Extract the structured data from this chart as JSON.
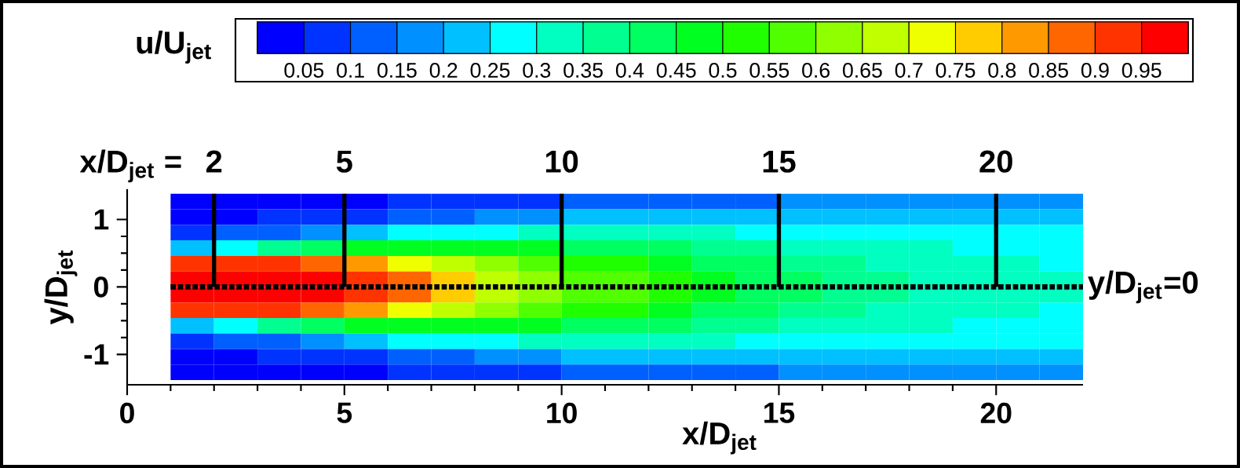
{
  "chart_data": {
    "type": "heatmap",
    "xlabel": "x/D$_{jet}$",
    "ylabel": "y/D$_{jet}$",
    "clabel": "u/U$_{jet}$",
    "xlim": [
      0,
      22
    ],
    "ylim": [
      -1.45,
      1.45
    ],
    "xticks": [
      0,
      5,
      10,
      15,
      20
    ],
    "yticks": [
      -1,
      0,
      1
    ],
    "x": [
      1.5,
      2.5,
      3.5,
      4.5,
      5.5,
      6.5,
      7.5,
      8.5,
      9.5,
      10.5,
      11.5,
      12.5,
      13.5,
      14.5,
      15.5,
      16.5,
      17.5,
      18.5,
      19.5,
      20.5,
      21.5
    ],
    "y": [
      1.265,
      1.035,
      0.805,
      0.575,
      0.345,
      0.115,
      -0.115,
      -0.345,
      -0.575,
      -0.805,
      -1.035,
      -1.265
    ],
    "cells": [
      [
        0.02,
        0.02,
        0.03,
        0.03,
        0.04,
        0.05,
        0.06,
        0.08,
        0.09,
        0.11,
        0.12,
        0.13,
        0.14,
        0.15,
        0.16,
        0.17,
        0.17,
        0.17,
        0.17,
        0.17,
        0.17
      ],
      [
        0.03,
        0.04,
        0.05,
        0.07,
        0.09,
        0.11,
        0.14,
        0.16,
        0.18,
        0.2,
        0.21,
        0.22,
        0.23,
        0.23,
        0.23,
        0.23,
        0.23,
        0.23,
        0.23,
        0.23,
        0.22
      ],
      [
        0.07,
        0.1,
        0.14,
        0.18,
        0.22,
        0.25,
        0.28,
        0.3,
        0.31,
        0.32,
        0.32,
        0.32,
        0.31,
        0.3,
        0.29,
        0.28,
        0.28,
        0.27,
        0.27,
        0.26,
        0.26
      ],
      [
        0.22,
        0.3,
        0.38,
        0.43,
        0.46,
        0.47,
        0.47,
        0.46,
        0.45,
        0.44,
        0.42,
        0.4,
        0.38,
        0.36,
        0.34,
        0.33,
        0.32,
        0.31,
        0.3,
        0.29,
        0.28
      ],
      [
        0.92,
        0.92,
        0.9,
        0.86,
        0.8,
        0.73,
        0.67,
        0.62,
        0.57,
        0.53,
        0.5,
        0.47,
        0.44,
        0.41,
        0.39,
        0.37,
        0.35,
        0.33,
        0.32,
        0.31,
        0.3
      ],
      [
        0.98,
        0.98,
        0.97,
        0.96,
        0.92,
        0.85,
        0.77,
        0.7,
        0.63,
        0.58,
        0.55,
        0.52,
        0.47,
        0.44,
        0.41,
        0.39,
        0.37,
        0.35,
        0.33,
        0.32,
        0.31
      ],
      [
        0.98,
        0.98,
        0.97,
        0.96,
        0.92,
        0.85,
        0.77,
        0.7,
        0.63,
        0.58,
        0.55,
        0.52,
        0.47,
        0.44,
        0.41,
        0.39,
        0.37,
        0.35,
        0.33,
        0.32,
        0.31
      ],
      [
        0.92,
        0.92,
        0.9,
        0.86,
        0.8,
        0.73,
        0.67,
        0.62,
        0.57,
        0.53,
        0.5,
        0.47,
        0.44,
        0.41,
        0.39,
        0.37,
        0.35,
        0.33,
        0.32,
        0.31,
        0.3
      ],
      [
        0.22,
        0.3,
        0.38,
        0.43,
        0.46,
        0.47,
        0.47,
        0.46,
        0.45,
        0.44,
        0.42,
        0.4,
        0.38,
        0.36,
        0.34,
        0.33,
        0.32,
        0.31,
        0.3,
        0.29,
        0.28
      ],
      [
        0.07,
        0.1,
        0.14,
        0.18,
        0.22,
        0.25,
        0.28,
        0.3,
        0.31,
        0.32,
        0.32,
        0.32,
        0.31,
        0.3,
        0.29,
        0.28,
        0.28,
        0.27,
        0.27,
        0.26,
        0.26
      ],
      [
        0.03,
        0.04,
        0.05,
        0.07,
        0.09,
        0.11,
        0.14,
        0.16,
        0.18,
        0.2,
        0.21,
        0.22,
        0.23,
        0.23,
        0.23,
        0.23,
        0.23,
        0.23,
        0.23,
        0.23,
        0.22
      ],
      [
        0.02,
        0.02,
        0.03,
        0.03,
        0.04,
        0.05,
        0.06,
        0.08,
        0.09,
        0.11,
        0.12,
        0.13,
        0.14,
        0.15,
        0.16,
        0.17,
        0.17,
        0.17,
        0.17,
        0.17,
        0.17
      ]
    ],
    "colors": [
      "#0000ff",
      "#0033ff",
      "#0060ff",
      "#0090ff",
      "#00c0ff",
      "#00ffff",
      "#00ffc0",
      "#00ff90",
      "#00ff60",
      "#00ff20",
      "#20ff00",
      "#50ff00",
      "#90ff00",
      "#c0ff00",
      "#f0ff00",
      "#ffcc00",
      "#ff9900",
      "#ff6600",
      "#ff3300",
      "#ff0000"
    ],
    "clim": [
      0,
      1
    ],
    "cticks": [
      0.05,
      0.1,
      0.15,
      0.2,
      0.25,
      0.3,
      0.35,
      0.4,
      0.45,
      0.5,
      0.55,
      0.6,
      0.65,
      0.7,
      0.75,
      0.8,
      0.85,
      0.9,
      0.95
    ],
    "ref_lines": [
      {
        "axis": "x",
        "value": 2,
        "label": "2",
        "color": "#000000",
        "line_style": "solid"
      },
      {
        "axis": "x",
        "value": 5,
        "label": "5",
        "color": "#000000",
        "line_style": "solid"
      },
      {
        "axis": "x",
        "value": 10,
        "label": "10",
        "color": "#000000",
        "line_style": "solid"
      },
      {
        "axis": "x",
        "value": 15,
        "label": "15",
        "color": "#000000",
        "line_style": "solid"
      },
      {
        "axis": "x",
        "value": 20,
        "label": "20",
        "color": "#000000",
        "line_style": "solid"
      },
      {
        "axis": "y",
        "value": 0,
        "label": "y/D$_{jet}$=0",
        "color": "#000000",
        "line_style": "dotted"
      }
    ],
    "annotations": [
      "x/D$_{jet}$ ="
    ]
  }
}
